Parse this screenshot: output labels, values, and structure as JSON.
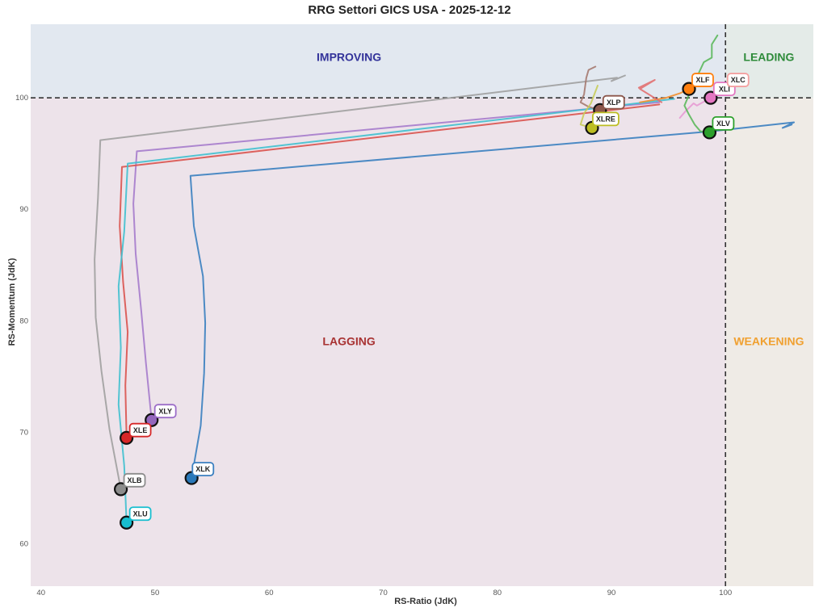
{
  "chart_data": {
    "type": "scatter",
    "title": "RRG Settori GICS USA - 2025-12-12",
    "xlabel": "RS-Ratio (JdK)",
    "ylabel": "RS-Momentum (JdK)",
    "xlim": [
      39.1,
      107.7
    ],
    "ylim": [
      56.2,
      106.6
    ],
    "xticks": [
      40,
      50,
      60,
      70,
      80,
      90,
      100
    ],
    "yticks": [
      60,
      70,
      80,
      90,
      100
    ],
    "reference_lines": {
      "x": 100,
      "y": 100,
      "style": "dashed"
    },
    "grid": false,
    "quadrants": [
      {
        "name": "IMPROVING",
        "color": "#33339a",
        "bg": "#e2e8f0",
        "label_pos": [
          67.0,
          103.3
        ]
      },
      {
        "name": "LEADING",
        "color": "#2e8b3a",
        "bg": "#e4ebe8",
        "label_pos": [
          103.8,
          103.3
        ]
      },
      {
        "name": "LAGGING",
        "color": "#a83232",
        "bg": "#ede3ea",
        "label_pos": [
          67.0,
          77.8
        ]
      },
      {
        "name": "WEAKENING",
        "color": "#f0a030",
        "bg": "#efebe6",
        "label_pos": [
          103.8,
          77.8
        ]
      }
    ],
    "series": [
      {
        "name": "XLK",
        "color": "#3a7fc0",
        "label_border": "#3a7fc0",
        "point_color": "#2a78b8",
        "current": [
          53.2,
          65.9
        ],
        "trail": [
          [
            105.8,
            97.6
          ],
          [
            105.0,
            97.3
          ],
          [
            106.0,
            97.8
          ],
          [
            98.8,
            97.0
          ],
          [
            53.1,
            93.0
          ],
          [
            53.4,
            88.5
          ],
          [
            54.2,
            84.0
          ],
          [
            54.4,
            79.8
          ],
          [
            54.3,
            75.3
          ],
          [
            54.0,
            70.6
          ],
          [
            53.2,
            65.9
          ]
        ]
      },
      {
        "name": "XLY",
        "color": "#a57bcc",
        "label_border": "#9c6ec8",
        "point_color": "#9467bd",
        "current": [
          49.7,
          71.1
        ],
        "trail": [
          [
            94.2,
            99.6
          ],
          [
            48.4,
            95.2
          ],
          [
            48.1,
            90.5
          ],
          [
            48.3,
            86.0
          ],
          [
            48.8,
            80.8
          ],
          [
            49.2,
            76.2
          ],
          [
            49.7,
            71.1
          ]
        ]
      },
      {
        "name": "XLE",
        "color": "#d9534f",
        "label_border": "#d62728",
        "point_color": "#d62728",
        "current": [
          47.5,
          69.5
        ],
        "trail": [
          [
            94.2,
            99.4
          ],
          [
            47.1,
            93.8
          ],
          [
            46.9,
            88.5
          ],
          [
            47.2,
            83.5
          ],
          [
            47.6,
            79.0
          ],
          [
            47.4,
            74.2
          ],
          [
            47.5,
            69.5
          ]
        ]
      },
      {
        "name": "XLU",
        "color": "#40c0cf",
        "label_border": "#17becf",
        "point_color": "#17becf",
        "current": [
          47.5,
          61.9
        ],
        "trail": [
          [
            95.5,
            99.9
          ],
          [
            47.6,
            94.1
          ],
          [
            47.3,
            88.0
          ],
          [
            46.8,
            83.1
          ],
          [
            47.0,
            77.6
          ],
          [
            46.8,
            72.5
          ],
          [
            47.3,
            67.0
          ],
          [
            47.5,
            61.9
          ]
        ]
      },
      {
        "name": "XLB",
        "color": "#a0a0a0",
        "label_border": "#8c8c8c",
        "point_color": "#8c8c8c",
        "current": [
          47.0,
          64.9
        ],
        "trail": [
          [
            91.2,
            102.0
          ],
          [
            90.0,
            101.5
          ],
          [
            90.5,
            101.8
          ],
          [
            45.2,
            96.2
          ],
          [
            45.0,
            91.0
          ],
          [
            44.7,
            85.5
          ],
          [
            44.8,
            80.3
          ],
          [
            45.3,
            75.5
          ],
          [
            46.0,
            70.3
          ],
          [
            47.0,
            64.9
          ]
        ]
      },
      {
        "name": "XLP",
        "color": "#a67a70",
        "label_border": "#8c564b",
        "point_color": "#8c564b",
        "current": [
          89.0,
          98.9
        ],
        "trail": [
          [
            88.6,
            102.8
          ],
          [
            88.0,
            102.5
          ],
          [
            87.8,
            101.8
          ],
          [
            87.6,
            100.3
          ],
          [
            87.3,
            99.6
          ],
          [
            88.0,
            99.2
          ],
          [
            89.0,
            98.9
          ]
        ]
      },
      {
        "name": "XLRE",
        "color": "#c8cc5a",
        "label_border": "#bcbd22",
        "point_color": "#bcbd22",
        "current": [
          88.3,
          97.3
        ],
        "trail": [
          [
            88.8,
            101.1
          ],
          [
            88.2,
            99.5
          ],
          [
            87.6,
            98.6
          ],
          [
            87.3,
            97.6
          ],
          [
            88.3,
            97.3
          ]
        ]
      },
      {
        "name": "XLF",
        "color": "#f28e2b",
        "label_border": "#ff7f0e",
        "point_color": "#ff7f0e",
        "current": [
          96.8,
          100.8
        ],
        "trail": [
          [
            92.5,
            99.6
          ],
          [
            94.8,
            100.0
          ],
          [
            96.0,
            100.4
          ],
          [
            96.8,
            100.8
          ]
        ]
      },
      {
        "name": "XLI",
        "color": "#e79ad4",
        "label_border": "#e377c2",
        "point_color": "#e377c2",
        "current": [
          98.7,
          100.0
        ],
        "trail": [
          [
            96.0,
            98.2
          ],
          [
            96.5,
            98.8
          ],
          [
            97.2,
            99.5
          ],
          [
            97.5,
            99.3
          ],
          [
            98.7,
            100.0
          ]
        ]
      },
      {
        "name": "XLC",
        "color": "#e27070",
        "label_border": "#f4a0a0",
        "point_color": null,
        "current": null,
        "trail": [
          [
            92.4,
            100.9
          ],
          [
            93.8,
            101.6
          ],
          [
            92.5,
            100.8
          ],
          [
            94.4,
            99.6
          ]
        ]
      },
      {
        "name": "XLV",
        "color": "#5cb85c",
        "label_border": "#2ca02c",
        "point_color": "#2ca02c",
        "current": [
          98.6,
          96.9
        ],
        "trail": [
          [
            99.3,
            105.6
          ],
          [
            98.8,
            104.8
          ],
          [
            98.8,
            103.6
          ],
          [
            98.1,
            103.2
          ],
          [
            97.1,
            101.0
          ],
          [
            96.4,
            99.3
          ],
          [
            96.8,
            98.5
          ],
          [
            97.3,
            97.6
          ],
          [
            97.8,
            97.0
          ],
          [
            98.6,
            96.9
          ]
        ]
      }
    ],
    "labels": [
      {
        "ticker": "XLK",
        "x": 54.2,
        "y": 66.7
      },
      {
        "ticker": "XLY",
        "x": 50.9,
        "y": 71.9
      },
      {
        "ticker": "XLE",
        "x": 48.7,
        "y": 70.2
      },
      {
        "ticker": "XLU",
        "x": 48.7,
        "y": 62.7
      },
      {
        "ticker": "XLB",
        "x": 48.2,
        "y": 65.7
      },
      {
        "ticker": "XLP",
        "x": 90.2,
        "y": 99.6
      },
      {
        "ticker": "XLRE",
        "x": 89.5,
        "y": 98.1
      },
      {
        "ticker": "XLF",
        "x": 98.0,
        "y": 101.6
      },
      {
        "ticker": "XLI",
        "x": 99.9,
        "y": 100.8
      },
      {
        "ticker": "XLC",
        "x": 101.1,
        "y": 101.6
      },
      {
        "ticker": "XLV",
        "x": 99.8,
        "y": 97.7
      }
    ]
  }
}
